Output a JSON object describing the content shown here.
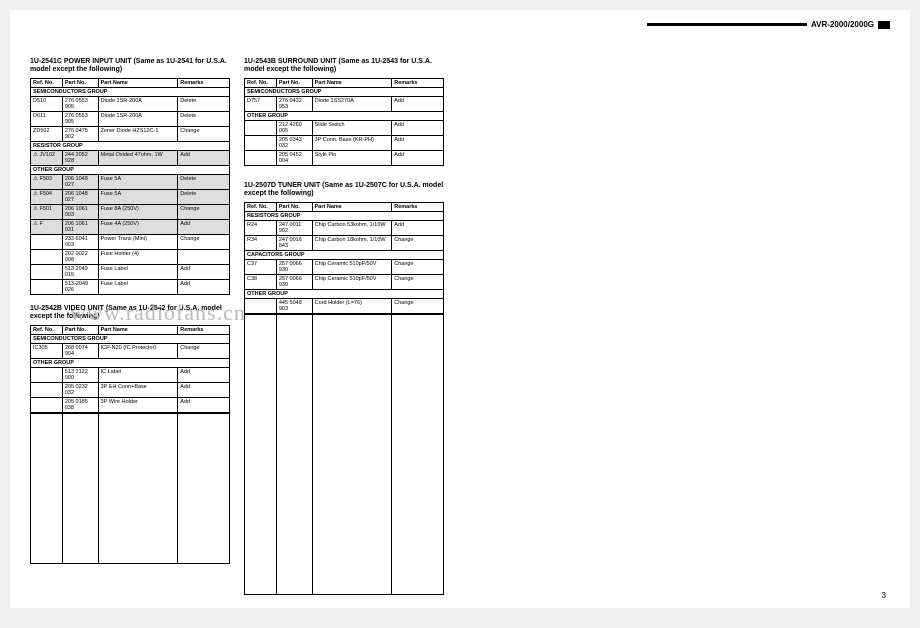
{
  "header": {
    "model": "AVR-2000/2000G"
  },
  "columns": {
    "ref": "Ref. No.",
    "part": "Part No.",
    "name": "Part Name",
    "remarks": "Remarks"
  },
  "pageNumber": "3",
  "watermark": "www.radiofans.cn",
  "units": {
    "u2541c": {
      "title": "1U-2541C POWER INPUT UNIT (Same as 1U-2541 for U.S.A. model except the following)",
      "groups": [
        {
          "name": "SEMICONDUCTORS GROUP",
          "rows": [
            {
              "ref": "D510",
              "part": "276 0553 905",
              "name": "Diode 1SR-200A",
              "remarks": "Delete",
              "shade": false
            },
            {
              "ref": "D611",
              "part": "276 0553 905",
              "name": "Diode 1SR-200A",
              "remarks": "Delete",
              "shade": false
            },
            {
              "ref": "ZD502",
              "part": "276 0475 902",
              "name": "Zener Diode HZS12C-1",
              "remarks": "Change",
              "shade": false
            }
          ]
        },
        {
          "name": "RESISTOR GROUP",
          "rows": [
            {
              "ref": "⚠ JV102",
              "part": "244 2052 928",
              "name": "Metal Oxided 47ohm, 1W",
              "remarks": "Add",
              "shade": true
            }
          ]
        },
        {
          "name": "OTHER GROUP",
          "rows": [
            {
              "ref": "⚠ F503",
              "part": "206 1048 027",
              "name": "Fuse 5A",
              "remarks": "Delete",
              "shade": true
            },
            {
              "ref": "⚠ F504",
              "part": "206 1048 027",
              "name": "Fuse 5A",
              "remarks": "Delete",
              "shade": true
            },
            {
              "ref": "⚠ F501",
              "part": "206 1061 003",
              "name": "Fuse 8A (250V)",
              "remarks": "Change",
              "shade": true
            },
            {
              "ref": "⚠ F",
              "part": "206 1061 031",
              "name": "Fuse 4A (250V)",
              "remarks": "Add",
              "shade": true
            },
            {
              "ref": "",
              "part": "233 6041 003",
              "name": "Power Trans (Mini)",
              "remarks": "Change",
              "shade": false
            },
            {
              "ref": "",
              "part": "202 0022 008",
              "name": "Fuse Holder (4)",
              "remarks": "",
              "shade": false
            },
            {
              "ref": "",
              "part": "513 2049 015",
              "name": "Fuse Label",
              "remarks": "Add",
              "shade": false
            },
            {
              "ref": "",
              "part": "513-2049 026",
              "name": "Fuse Label",
              "remarks": "Add",
              "shade": false
            }
          ]
        }
      ]
    },
    "u2542b": {
      "title": "1U-2542B VIDEO UNIT (Same as 1U-2542 for U.S.A. model except the following)",
      "groups": [
        {
          "name": "SEMICONDUCTORS GROUP",
          "rows": [
            {
              "ref": "IC305",
              "part": "268 0074 904",
              "name": "ICP-N20 (IC Protector)",
              "remarks": "Change",
              "shade": false
            }
          ]
        },
        {
          "name": "OTHER GROUP",
          "rows": [
            {
              "ref": "",
              "part": "513 2122 000",
              "name": "IC Label",
              "remarks": "Add",
              "shade": false
            },
            {
              "ref": "",
              "part": "205 0232 032",
              "name": "3P EH Conn+Base",
              "remarks": "Add",
              "shade": false
            },
            {
              "ref": "",
              "part": "205 0185 038",
              "name": "3P Wire Holder",
              "remarks": "Add",
              "shade": false
            }
          ]
        }
      ]
    },
    "u2543b": {
      "title": "1U-2543B SURROUND UNIT (Same as 1U-2543 for U.S.A. model except the following)",
      "groups": [
        {
          "name": "SEMICONDUCTORS GROUP",
          "rows": [
            {
              "ref": "D757",
              "part": "276 0432 953",
              "name": "Diode 1SS270A",
              "remarks": "Add",
              "shade": false
            }
          ]
        },
        {
          "name": "OTHER GROUP",
          "rows": [
            {
              "ref": "",
              "part": "212 4260 005",
              "name": "Slide Switch",
              "remarks": "Add",
              "shade": false
            },
            {
              "ref": "",
              "part": "205 0343 032",
              "name": "3P Conn. Base (KR-PH)",
              "remarks": "Add",
              "shade": false
            },
            {
              "ref": "",
              "part": "205 0452 004",
              "name": "Style Pin",
              "remarks": "Add",
              "shade": false
            }
          ]
        }
      ]
    },
    "u2507d": {
      "title": "1U-2507D TUNER UNIT (Same as 1U-2507C for U.S.A. model except the following)",
      "groups": [
        {
          "name": "RESISTORS GROUP",
          "rows": [
            {
              "ref": "R24",
              "part": "247 0011 902",
              "name": "Chip Carbon 53kohm, 1/10W",
              "remarks": "Add",
              "shade": false
            },
            {
              "ref": "R34",
              "part": "247 0016 843",
              "name": "Chip Carbon 18kohm, 1/10W",
              "remarks": "Change",
              "shade": false
            }
          ]
        },
        {
          "name": "CAPACITORS GROUP",
          "rows": [
            {
              "ref": "C37",
              "part": "257 0066 930",
              "name": "Chip Ceramic 510pF/50V",
              "remarks": "Change",
              "shade": false
            },
            {
              "ref": "C38",
              "part": "257 0066 930",
              "name": "Chip Ceramic 510pF/50V",
              "remarks": "Change",
              "shade": false
            }
          ]
        },
        {
          "name": "OTHER GROUP",
          "rows": [
            {
              "ref": "",
              "part": "445 5048 903",
              "name": "Cord Holder (L=76)",
              "remarks": "Change",
              "shade": false
            }
          ]
        }
      ]
    }
  }
}
